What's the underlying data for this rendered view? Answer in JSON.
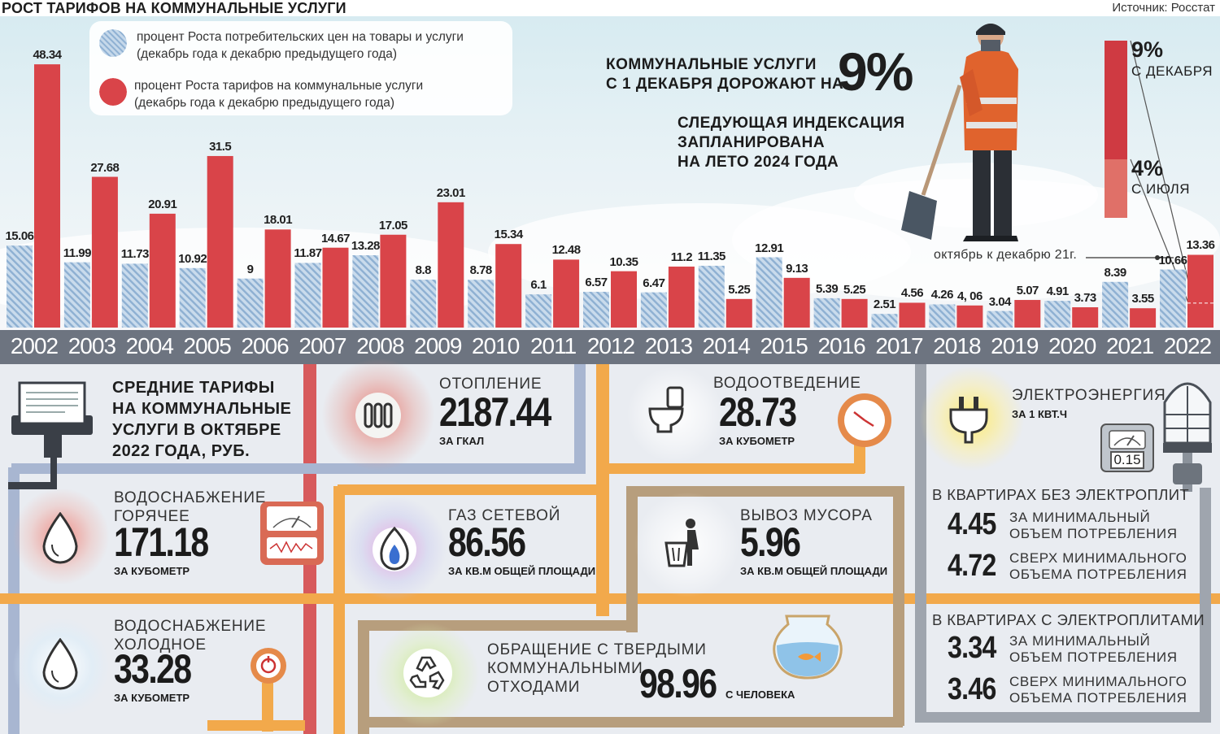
{
  "title": "РОСТ ТАРИФОВ НА КОММУНАЛЬНЫЕ УСЛУГИ",
  "source": "Источник: Росстат",
  "colors": {
    "cpi": "#a9c4de",
    "tariff": "#d94449",
    "band": "#6d7480"
  },
  "legend": {
    "cpi_line1": "процент Роста потребительских цен на товары и услуги",
    "cpi_line2": "(декабрь года к декабрю предыдущего года)",
    "tariff_line1": "процент Роста тарифов на коммунальные услуги",
    "tariff_line2": "(декабрь года к декабрю предыдущего года)"
  },
  "headline": {
    "line1": "КОММУНАЛЬНЫЕ УСЛУГИ",
    "line2": "С 1 ДЕКАБРЯ ДОРОЖАЮТ НА",
    "big": "9%",
    "next1": "СЛЕДУЮЩАЯ ИНДЕКСАЦИЯ",
    "next2": "ЗАПЛАНИРОВАНА",
    "next3": "НА ЛЕТО 2024 ГОДА"
  },
  "side_indexation": {
    "dec_pct": "9%",
    "dec_label": "С ДЕКАБРЯ",
    "jul_pct": "4%",
    "jul_label": "С ИЮЛЯ",
    "values": {
      "december": 9,
      "july": 4
    }
  },
  "oct_note": "октябрь к декабрю 21г.",
  "chart_data": {
    "type": "bar",
    "categories": [
      "2002",
      "2003",
      "2004",
      "2005",
      "2006",
      "2007",
      "2008",
      "2009",
      "2010",
      "2011",
      "2012",
      "2013",
      "2014",
      "2015",
      "2016",
      "2017",
      "2018",
      "2019",
      "2020",
      "2021",
      "2022"
    ],
    "series": [
      {
        "name": "процент Роста потребительских цен на товары и услуги",
        "values": [
          15.06,
          11.99,
          11.73,
          10.92,
          9,
          11.87,
          13.28,
          8.8,
          8.78,
          6.1,
          6.57,
          6.47,
          11.35,
          12.91,
          5.39,
          2.51,
          4.26,
          3.04,
          4.91,
          8.39,
          10.66
        ],
        "labels": [
          "15.06",
          "11.99",
          "11.73",
          "10.92",
          "9",
          "11.87",
          "13.28",
          "8.8",
          "8.78",
          "6.1",
          "6.57",
          "6.47",
          "11.35",
          "12.91",
          "5.39",
          "2.51",
          "4.26",
          "3.04",
          "4.91",
          "8.39",
          "10.66"
        ]
      },
      {
        "name": "процент Роста тарифов на коммунальные услуги",
        "values": [
          48.34,
          27.68,
          20.91,
          31.5,
          18.01,
          14.67,
          17.05,
          23.01,
          15.34,
          12.48,
          10.35,
          11.2,
          5.25,
          9.13,
          5.25,
          4.56,
          4.06,
          5.07,
          3.73,
          3.55,
          13.36
        ],
        "labels": [
          "48.34",
          "27.68",
          "20.91",
          "31.5",
          "18.01",
          "14.67",
          "17.05",
          "23.01",
          "15.34",
          "12.48",
          "10.35",
          "11.2",
          "5.25",
          "9.13",
          "5.25",
          "4.56",
          "4, 06",
          "5.07",
          "3.73",
          "3.55",
          "13.36"
        ]
      }
    ],
    "ylim": [
      0,
      50
    ],
    "grid": false,
    "legend_position": "top-left"
  },
  "tariffs": {
    "heading": [
      "СРЕДНИЕ ТАРИФЫ",
      "НА КОММУНАЛЬНЫЕ",
      "УСЛУГИ В ОКТЯБРЕ",
      "2022 ГОДА, РУБ."
    ],
    "heating": {
      "label": "ОТОПЛЕНИЕ",
      "value": "2187.44",
      "unit": "ЗА ГКАЛ"
    },
    "sewage": {
      "label": "ВОДООТВЕДЕНИЕ",
      "value": "28.73",
      "unit": "ЗА КУБОМЕТР"
    },
    "hot_water": {
      "label1": "ВОДОСНАБЖЕНИЕ",
      "label2": "ГОРЯЧЕЕ",
      "value": "171.18",
      "unit": "ЗА КУБОМЕТР"
    },
    "gas": {
      "label": "ГАЗ СЕТЕВОЙ",
      "value": "86.56",
      "unit": "ЗА КВ.М ОБЩЕЙ ПЛОЩАДИ"
    },
    "garbage": {
      "label": "ВЫВОЗ МУСОРА",
      "value": "5.96",
      "unit": "ЗА КВ.М ОБЩЕЙ ПЛОЩАДИ"
    },
    "cold_water": {
      "label1": "ВОДОСНАБЖЕНИЕ",
      "label2": "ХОЛОДНОЕ",
      "value": "33.28",
      "unit": "ЗА КУБОМЕТР"
    },
    "waste": {
      "label1": "ОБРАЩЕНИЕ С ТВЕРДЫМИ",
      "label2": "КОММУНАЛЬНЫМИ",
      "label3": "ОТХОДАМИ",
      "value": "98.96",
      "unit": "С ЧЕЛОВЕКА"
    },
    "meter_reading": "0.15",
    "electricity": {
      "label": "ЭЛЕКТРОЭНЕРГИЯ",
      "unit": "ЗА 1 КВТ.Ч",
      "no_stove_heading": "В КВАРТИРАХ БЕЗ ЭЛЕКТРОПЛИТ",
      "with_stove_heading": "В КВАРТИРАХ С ЭЛЕКТРОПЛИТАМИ",
      "min_l1": "ЗА МИНИМАЛЬНЫЙ",
      "min_l2": "ОБЪЕМ ПОТРЕБЛЕНИЯ",
      "over_l1": "СВЕРХ МИНИМАЛЬНОГО",
      "over_l2": "ОБЪЕМА ПОТРЕБЛЕНИЯ",
      "no_stove_min": "4.45",
      "no_stove_over": "4.72",
      "with_stove_min": "3.34",
      "with_stove_over": "3.46"
    }
  }
}
